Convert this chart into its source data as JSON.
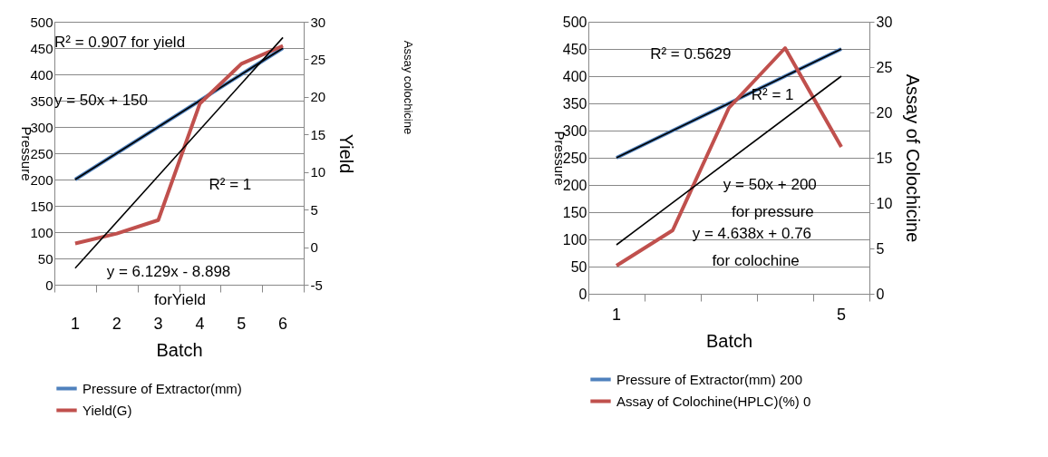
{
  "chart_data": [
    {
      "type": "line",
      "categories": [
        "1",
        "2",
        "3",
        "4",
        "5",
        "6"
      ],
      "xlabel": "Batch",
      "ylabel": "Pressure",
      "y2label": "Yield",
      "ylim": [
        0,
        500
      ],
      "yticks": [
        0,
        50,
        100,
        150,
        200,
        250,
        300,
        350,
        400,
        450,
        500
      ],
      "y2lim": [
        -5,
        30
      ],
      "y2ticks": [
        -5,
        0,
        5,
        10,
        15,
        20,
        25,
        30
      ],
      "grid": "y",
      "legend": "bottom",
      "marker": "none",
      "line_style": "solid",
      "series": [
        {
          "name": "Pressure of Extractor(mm)",
          "color": "#4f81bd",
          "values": [
            200,
            250,
            300,
            350,
            400,
            450
          ]
        },
        {
          "name": "Yield(G)",
          "color": "#c0504d",
          "axis": "y2",
          "values": [
            0.5,
            1.8,
            3.6,
            19.1,
            24.4,
            26.8
          ]
        },
        {
          "type": "line",
          "color": "#000000",
          "x": [
            "1",
            "6"
          ],
          "values": [
            200,
            450
          ]
        },
        {
          "type": "line",
          "color": "#000000",
          "axis": "y2",
          "x": [
            "1",
            "6"
          ],
          "values": [
            -2.8,
            27.9
          ]
        }
      ],
      "annotations": [
        "R² = 0.907 for yield",
        "R² = 1",
        "y = 50x + 150",
        "y = 6.129x - 8.898",
        "forYield",
        "Assay colochicine"
      ]
    },
    {
      "type": "line",
      "categories": [
        "1",
        null,
        null,
        null,
        "5"
      ],
      "xlabel": "Batch",
      "ylabel": "Pressure",
      "y2label": "Assay of Colochicine",
      "ylim": [
        0,
        500
      ],
      "yticks": [
        0,
        50,
        100,
        150,
        200,
        250,
        300,
        350,
        400,
        450,
        500
      ],
      "y2lim": [
        0,
        30
      ],
      "y2ticks": [
        0,
        5,
        10,
        15,
        20,
        25,
        30
      ],
      "grid": "y",
      "legend": "bottom",
      "marker": "none",
      "line_style": "solid",
      "series": [
        {
          "name": "Pressure of Extractor(mm) 200",
          "color": "#4f81bd",
          "values": [
            250,
            300,
            350,
            400,
            450
          ]
        },
        {
          "name": "Assay of Colochine(HPLC)(%) 0",
          "color": "#c0504d",
          "axis": "y2",
          "values": [
            3.1,
            7.0,
            20.5,
            27.1,
            16.2
          ]
        },
        {
          "type": "line",
          "color": "#000000",
          "x": [
            "1",
            "5"
          ],
          "values": [
            250,
            450
          ]
        },
        {
          "type": "line",
          "color": "#000000",
          "axis": "y2",
          "x": [
            "1",
            "5"
          ],
          "values": [
            5.4,
            24.0
          ]
        }
      ],
      "annotations": [
        "R² = 0.5629",
        "R² = 1",
        "y = 50x + 200",
        "for pressure",
        "y = 4.638x + 0.76",
        "for colochine"
      ]
    }
  ]
}
